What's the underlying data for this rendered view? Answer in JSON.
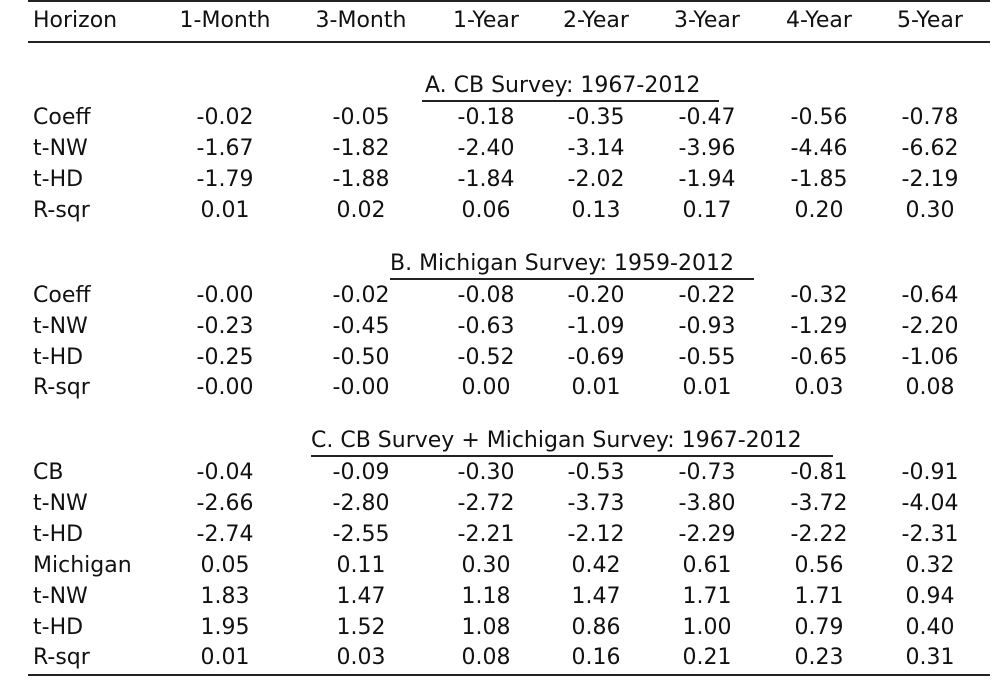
{
  "header": [
    "Horizon",
    "1-Month",
    "3-Month",
    "1-Year",
    "2-Year",
    "3-Year",
    "4-Year",
    "5-Year"
  ],
  "panels": [
    {
      "title": "A. CB Survey:  1967-2012",
      "rows": [
        {
          "label": "Coeff",
          "values": [
            "-0.02",
            "-0.05",
            "-0.18",
            "-0.35",
            "-0.47",
            "-0.56",
            "-0.78"
          ]
        },
        {
          "label": "t-NW",
          "values": [
            "-1.67",
            "-1.82",
            "-2.40",
            "-3.14",
            "-3.96",
            "-4.46",
            "-6.62"
          ]
        },
        {
          "label": "t-HD",
          "values": [
            "-1.79",
            "-1.88",
            "-1.84",
            "-2.02",
            "-1.94",
            "-1.85",
            "-2.19"
          ]
        },
        {
          "label": "R-sqr",
          "values": [
            "0.01",
            "0.02",
            "0.06",
            "0.13",
            "0.17",
            "0.20",
            "0.30"
          ]
        }
      ]
    },
    {
      "title": "B. Michigan Survey:  1959-2012",
      "rows": [
        {
          "label": "Coeff",
          "values": [
            "-0.00",
            "-0.02",
            "-0.08",
            "-0.20",
            "-0.22",
            "-0.32",
            "-0.64"
          ]
        },
        {
          "label": "t-NW",
          "values": [
            "-0.23",
            "-0.45",
            "-0.63",
            "-1.09",
            "-0.93",
            "-1.29",
            "-2.20"
          ]
        },
        {
          "label": "t-HD",
          "values": [
            "-0.25",
            "-0.50",
            "-0.52",
            "-0.69",
            "-0.55",
            "-0.65",
            "-1.06"
          ]
        },
        {
          "label": "R-sqr",
          "values": [
            "-0.00",
            "-0.00",
            "0.00",
            "0.01",
            "0.01",
            "0.03",
            "0.08"
          ]
        }
      ]
    },
    {
      "title": "C. CB Survey + Michigan Survey:  1967-2012",
      "rows": [
        {
          "label": "CB",
          "values": [
            "-0.04",
            "-0.09",
            "-0.30",
            "-0.53",
            "-0.73",
            "-0.81",
            "-0.91"
          ]
        },
        {
          "label": "t-NW",
          "values": [
            "-2.66",
            "-2.80",
            "-2.72",
            "-3.73",
            "-3.80",
            "-3.72",
            "-4.04"
          ]
        },
        {
          "label": "t-HD",
          "values": [
            "-2.74",
            "-2.55",
            "-2.21",
            "-2.12",
            "-2.29",
            "-2.22",
            "-2.31"
          ]
        },
        {
          "label": "Michigan",
          "values": [
            "0.05",
            "0.11",
            "0.30",
            "0.42",
            "0.61",
            "0.56",
            "0.32"
          ]
        },
        {
          "label": "t-NW",
          "values": [
            "1.83",
            "1.47",
            "1.18",
            "1.47",
            "1.71",
            "1.71",
            "0.94"
          ]
        },
        {
          "label": "t-HD",
          "values": [
            "1.95",
            "1.52",
            "1.08",
            "0.86",
            "1.00",
            "0.79",
            "0.40"
          ]
        },
        {
          "label": "R-sqr",
          "values": [
            "0.01",
            "0.03",
            "0.08",
            "0.16",
            "0.21",
            "0.23",
            "0.31"
          ]
        }
      ]
    }
  ]
}
